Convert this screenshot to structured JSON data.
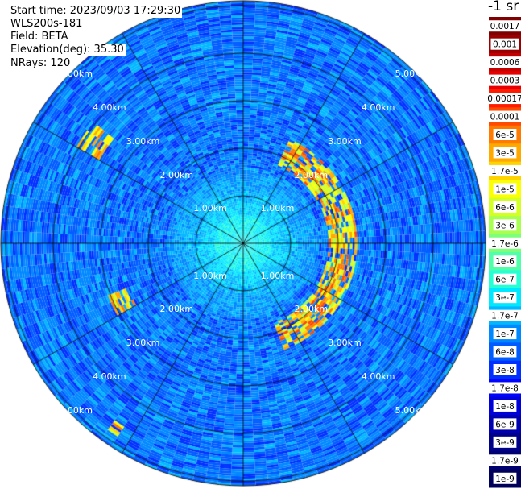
{
  "info": {
    "start_time": "Start time: 2023/09/03 17:29:30",
    "instrument": "WLS200s-181",
    "field": "Field: BETA",
    "elevation": "Elevation(deg): 35.30",
    "nrays": "NRays: 120"
  },
  "colorbar": {
    "unit": "-1 sr",
    "labels": [
      "0.0017",
      "0.001",
      "0.0006",
      "0.0003",
      "0.00017",
      "0.0001",
      "6e-5",
      "3e-5",
      "1.7e-5",
      "1e-5",
      "6e-6",
      "3e-6",
      "1.7e-6",
      "1e-6",
      "6e-7",
      "3e-7",
      "1.7e-7",
      "1e-7",
      "6e-8",
      "3e-8",
      "1.7e-8",
      "1e-8",
      "6e-9",
      "3e-9",
      "1.7e-9",
      "1e-9"
    ],
    "colors": [
      "#7f0000",
      "#9a0000",
      "#c20000",
      "#e80000",
      "#ff1a00",
      "#ff4a00",
      "#ff7a00",
      "#ffa800",
      "#ffd300",
      "#fbff00",
      "#d4ff24",
      "#a8ff50",
      "#7dff7a",
      "#50ffa8",
      "#24ffd4",
      "#00e8ff",
      "#00b8ff",
      "#0088ff",
      "#005cff",
      "#0030ff",
      "#0004ff",
      "#0000d8",
      "#0000b0",
      "#000088",
      "#000070",
      "#00005a"
    ]
  },
  "chart_data": {
    "type": "heatmap",
    "projection": "polar (PPI)",
    "field": "BETA",
    "elevation_deg": 35.3,
    "nrays": 120,
    "range_rings_km": [
      1.0,
      2.0,
      3.0,
      4.0,
      5.0
    ],
    "ring_labels": [
      "1.00km",
      "2.00km",
      "3.00km",
      "4.00km",
      "5.00km"
    ],
    "spokes_deg": [
      0,
      30,
      60,
      90,
      120,
      150,
      180,
      210,
      240,
      270,
      300,
      330
    ],
    "scale": "log",
    "vmin": 1e-09,
    "vmax": 0.0017,
    "background_level": "1e-7 to 3e-8 (blue)",
    "near_field_level": "3e-7 to 1.7e-6 (cyan/green)",
    "echo_features": [
      {
        "description": "arc of strong echoes to the east",
        "range_km": [
          1.8,
          2.4
        ],
        "azimuth_deg": [
          25,
          160
        ],
        "level": "6e-5 to 1e-5"
      },
      {
        "description": "northwest patch",
        "range_km": [
          3.5,
          4.0
        ],
        "azimuth_deg": [
          300,
          310
        ],
        "level": "1e-5"
      },
      {
        "description": "southwest patch",
        "range_km": [
          2.6,
          3.0
        ],
        "azimuth_deg": [
          240,
          248
        ],
        "level": "3e-5"
      },
      {
        "description": "south-southwest patch",
        "range_km": [
          4.6,
          4.9
        ],
        "azimuth_deg": [
          212,
          216
        ],
        "level": "1e-5"
      }
    ]
  }
}
